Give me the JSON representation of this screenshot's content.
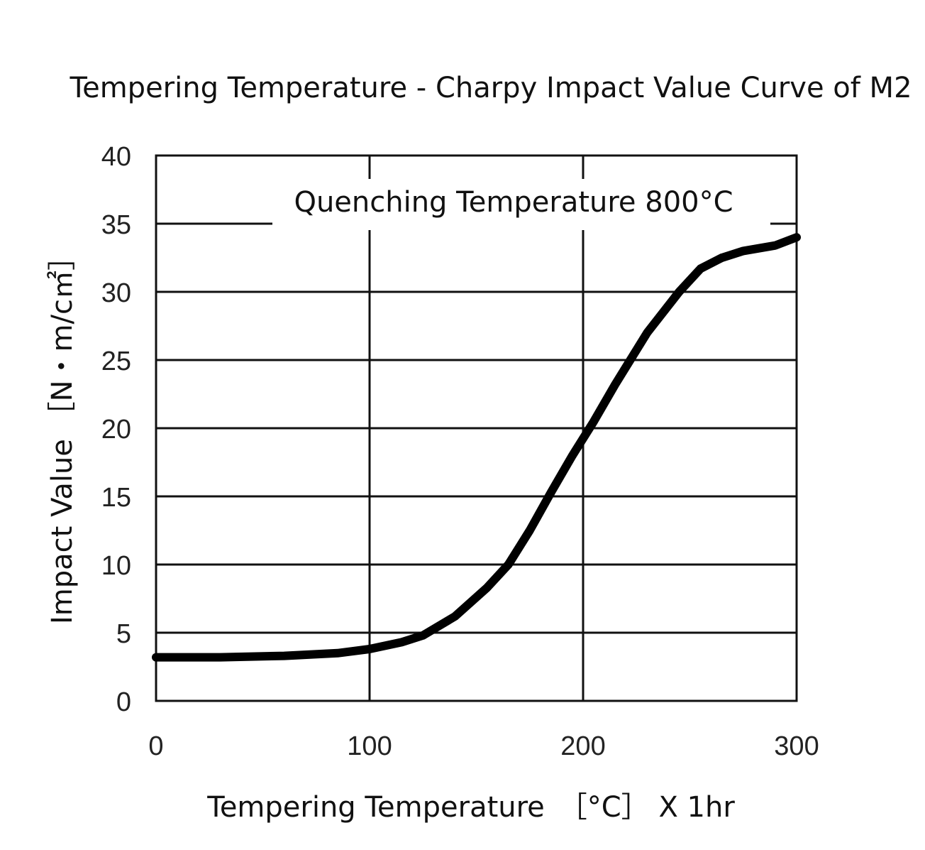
{
  "chart_data": {
    "type": "line",
    "title": "Tempering Temperature - Charpy Impact Value Curve of M2",
    "annotation": "Quenching Temperature 800°C",
    "xlabel": "Tempering Temperature　［°C］ X 1hr",
    "ylabel": "Impact Value ［N・m/c㎡］",
    "xlim": [
      0,
      300
    ],
    "ylim": [
      0,
      40
    ],
    "xticks": [
      0,
      100,
      200,
      300
    ],
    "yticks": [
      0,
      5,
      10,
      15,
      20,
      25,
      30,
      35,
      40
    ],
    "grid": true,
    "series": [
      {
        "values": [
          [
            0,
            3.2
          ],
          [
            30,
            3.2
          ],
          [
            60,
            3.3
          ],
          [
            85,
            3.5
          ],
          [
            100,
            3.8
          ],
          [
            115,
            4.3
          ],
          [
            125,
            4.8
          ],
          [
            140,
            6.2
          ],
          [
            155,
            8.3
          ],
          [
            165,
            10.0
          ],
          [
            175,
            12.5
          ],
          [
            185,
            15.3
          ],
          [
            195,
            18.0
          ],
          [
            205,
            20.5
          ],
          [
            215,
            23.2
          ],
          [
            230,
            27.0
          ],
          [
            245,
            30.0
          ],
          [
            255,
            31.7
          ],
          [
            265,
            32.5
          ],
          [
            275,
            33.0
          ],
          [
            290,
            33.4
          ],
          [
            300,
            34.0
          ]
        ]
      }
    ]
  }
}
